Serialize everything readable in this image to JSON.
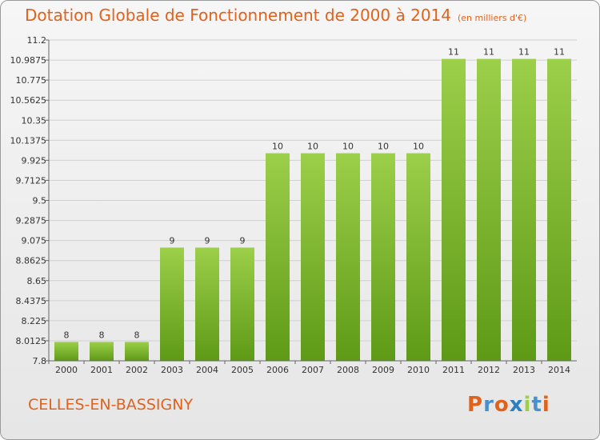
{
  "title": "Dotation Globale de Fonctionnement de 2000 à 2014",
  "unit_note": "(en milliers d'€)",
  "commune": "CELLES-EN-BASSIGNY",
  "logo": "Proxiti",
  "colors": {
    "title": "#e0621c",
    "bar_top": "#9ccf4a",
    "bar_bottom": "#5e9a16",
    "logo_letters": [
      "#e0621c",
      "#4a90c9",
      "#e0621c",
      "#2e7fc0",
      "#9ccf4a",
      "#4a90c9",
      "#e0621c"
    ]
  },
  "chart_data": {
    "type": "bar",
    "categories": [
      "2000",
      "2001",
      "2002",
      "2003",
      "2004",
      "2005",
      "2006",
      "2007",
      "2008",
      "2009",
      "2010",
      "2011",
      "2012",
      "2013",
      "2014"
    ],
    "values": [
      8,
      8,
      8,
      9,
      9,
      9,
      10,
      10,
      10,
      10,
      10,
      11,
      11,
      11,
      11
    ],
    "labels": [
      "8",
      "8",
      "8",
      "9",
      "9",
      "9",
      "10",
      "10",
      "10",
      "10",
      "10",
      "11",
      "11",
      "11",
      "11"
    ],
    "ylim": [
      7.8,
      11.2
    ],
    "yticks": [
      "7.8",
      "8.0125",
      "8.225",
      "8.4375",
      "8.65",
      "8.8625",
      "9.075",
      "9.2875",
      "9.5",
      "9.7125",
      "9.925",
      "10.1375",
      "10.35",
      "10.5625",
      "10.775",
      "10.9875",
      "11.2"
    ],
    "grid": true
  }
}
